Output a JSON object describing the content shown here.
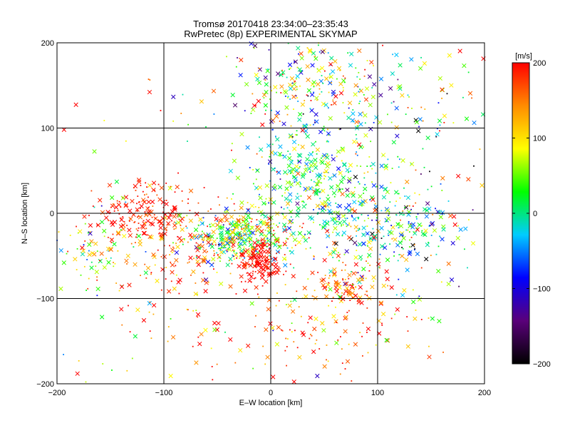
{
  "chart_data": {
    "type": "scatter",
    "title": "Tromsø 20170418 23:34:00–23:35:43",
    "subtitle": "RwPretec (8p) EXPERIMENTAL SKYMAP",
    "xlabel": "E–W location [km]",
    "ylabel": "N–S location [km]",
    "xlim": [
      -200,
      200
    ],
    "ylim": [
      -200,
      200
    ],
    "xticks": [
      -200,
      -100,
      0,
      100,
      200
    ],
    "yticks": [
      -200,
      -100,
      0,
      100,
      200
    ],
    "grid": true,
    "marker_types": [
      "x",
      "dot"
    ],
    "colorbar": {
      "label": "[m/s]",
      "min": -200,
      "max": 200,
      "ticks": [
        -200,
        -100,
        0,
        100,
        200
      ],
      "colormap": [
        "#000000",
        "#5a007a",
        "#0000ff",
        "#00ccff",
        "#00ff00",
        "#ffff00",
        "#ff8c00",
        "#ff0000"
      ]
    },
    "clusters": [
      {
        "x": -120,
        "y": 0,
        "sx": 25,
        "sy": 18,
        "n": 170,
        "v": 190,
        "vs": 20
      },
      {
        "x": -170,
        "y": -45,
        "sx": 22,
        "sy": 22,
        "n": 70,
        "v": 60,
        "vs": 80
      },
      {
        "x": -90,
        "y": -45,
        "sx": 25,
        "sy": 25,
        "n": 110,
        "v": 170,
        "vs": 50
      },
      {
        "x": -40,
        "y": -30,
        "sx": 22,
        "sy": 18,
        "n": 220,
        "v": 40,
        "vs": 90
      },
      {
        "x": -10,
        "y": -55,
        "sx": 10,
        "sy": 14,
        "n": 160,
        "v": 195,
        "vs": 10
      },
      {
        "x": -20,
        "y": -20,
        "sx": 18,
        "sy": 14,
        "n": 140,
        "v": 90,
        "vs": 70
      },
      {
        "x": 40,
        "y": 40,
        "sx": 30,
        "sy": 35,
        "n": 340,
        "v": 20,
        "vs": 60
      },
      {
        "x": 40,
        "y": 150,
        "sx": 35,
        "sy": 30,
        "n": 220,
        "v": 40,
        "vs": 100
      },
      {
        "x": 110,
        "y": -20,
        "sx": 40,
        "sy": 30,
        "n": 300,
        "v": 0,
        "vs": 90
      },
      {
        "x": 75,
        "y": -85,
        "sx": 15,
        "sy": 12,
        "n": 90,
        "v": 160,
        "vs": 50
      },
      {
        "x": 50,
        "y": -140,
        "sx": 40,
        "sy": 30,
        "n": 110,
        "v": 160,
        "vs": 60
      },
      {
        "x": -80,
        "y": -130,
        "sx": 45,
        "sy": 35,
        "n": 60,
        "v": 150,
        "vs": 80
      },
      {
        "x": 140,
        "y": 120,
        "sx": 40,
        "sy": 50,
        "n": 90,
        "v": 40,
        "vs": 110
      },
      {
        "x": 0,
        "y": 0,
        "sx": 120,
        "sy": 110,
        "n": 180,
        "v": 80,
        "vs": 110
      }
    ]
  }
}
